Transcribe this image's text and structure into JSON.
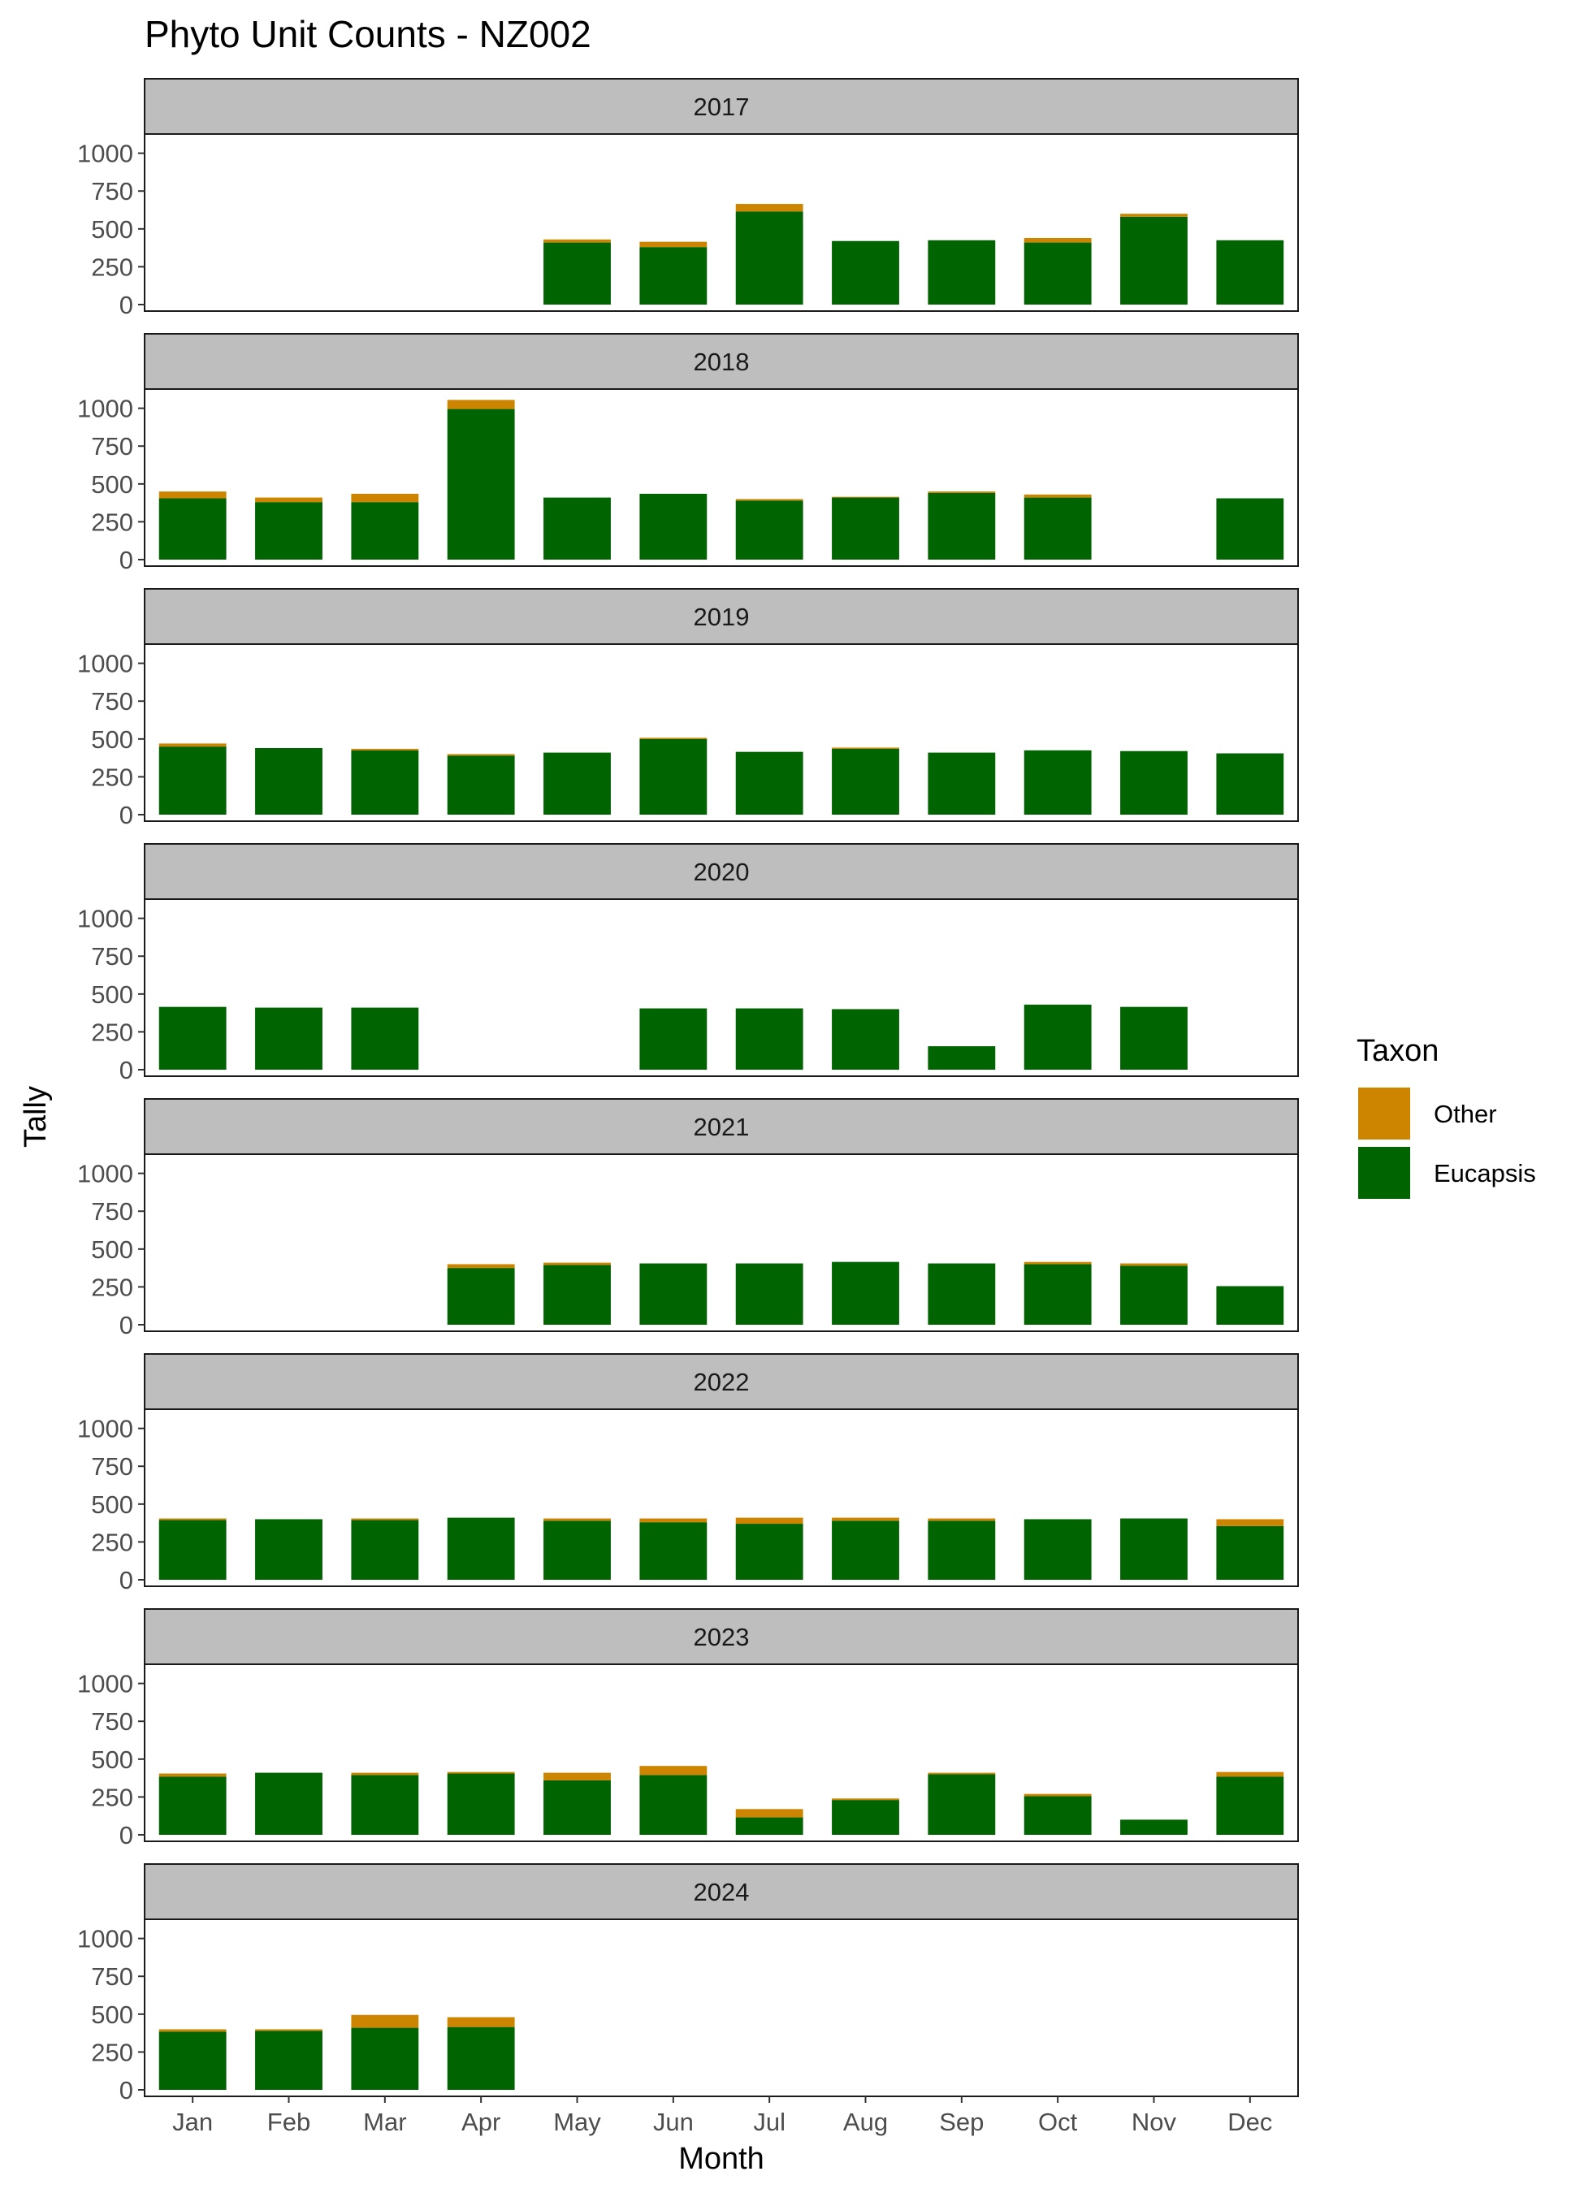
{
  "chart_data": {
    "type": "bar",
    "stacked": true,
    "faceted_by": "year",
    "title": "Phyto Unit Counts - NZ002",
    "xlabel": "Month",
    "ylabel": "Tally",
    "ylim": [
      0,
      1100
    ],
    "yticks": [
      0,
      250,
      500,
      750,
      1000
    ],
    "grid": false,
    "legend": {
      "title": "Taxon",
      "position": "right",
      "entries": [
        "Other",
        "Eucapsis"
      ]
    },
    "colors": {
      "Other": "#CD8500",
      "Eucapsis": "#006400",
      "strip": "#bebebe"
    },
    "categories": [
      "Jan",
      "Feb",
      "Mar",
      "Apr",
      "May",
      "Jun",
      "Jul",
      "Aug",
      "Sep",
      "Oct",
      "Nov",
      "Dec"
    ],
    "panels": [
      {
        "year": "2017",
        "series": [
          {
            "name": "Eucapsis",
            "values": [
              null,
              null,
              null,
              null,
              410,
              380,
              615,
              420,
              425,
              410,
              580,
              425
            ]
          },
          {
            "name": "Other",
            "values": [
              null,
              null,
              null,
              null,
              20,
              35,
              50,
              0,
              0,
              30,
              20,
              0
            ]
          }
        ]
      },
      {
        "year": "2018",
        "series": [
          {
            "name": "Eucapsis",
            "values": [
              405,
              380,
              380,
              995,
              410,
              435,
              390,
              410,
              440,
              410,
              null,
              405
            ]
          },
          {
            "name": "Other",
            "values": [
              45,
              30,
              55,
              60,
              0,
              0,
              10,
              5,
              10,
              20,
              null,
              0
            ]
          }
        ]
      },
      {
        "year": "2019",
        "series": [
          {
            "name": "Eucapsis",
            "values": [
              450,
              440,
              425,
              390,
              410,
              500,
              415,
              435,
              410,
              425,
              420,
              405
            ]
          },
          {
            "name": "Other",
            "values": [
              20,
              0,
              10,
              10,
              0,
              8,
              0,
              8,
              0,
              0,
              0,
              0
            ]
          }
        ]
      },
      {
        "year": "2020",
        "series": [
          {
            "name": "Eucapsis",
            "values": [
              415,
              410,
              410,
              null,
              null,
              405,
              405,
              400,
              155,
              430,
              415,
              null
            ]
          },
          {
            "name": "Other",
            "values": [
              0,
              0,
              0,
              null,
              null,
              0,
              0,
              0,
              0,
              0,
              0,
              null
            ]
          }
        ]
      },
      {
        "year": "2021",
        "series": [
          {
            "name": "Eucapsis",
            "values": [
              null,
              null,
              null,
              375,
              395,
              405,
              405,
              415,
              405,
              400,
              390,
              255
            ]
          },
          {
            "name": "Other",
            "values": [
              null,
              null,
              null,
              25,
              15,
              0,
              0,
              0,
              0,
              15,
              15,
              0
            ]
          }
        ]
      },
      {
        "year": "2022",
        "series": [
          {
            "name": "Eucapsis",
            "values": [
              395,
              400,
              395,
              410,
              390,
              380,
              370,
              390,
              390,
              400,
              405,
              355
            ]
          },
          {
            "name": "Other",
            "values": [
              10,
              0,
              10,
              0,
              15,
              25,
              40,
              20,
              15,
              0,
              0,
              45
            ]
          }
        ]
      },
      {
        "year": "2023",
        "series": [
          {
            "name": "Eucapsis",
            "values": [
              385,
              410,
              395,
              405,
              360,
              395,
              115,
              230,
              400,
              255,
              100,
              385
            ]
          },
          {
            "name": "Other",
            "values": [
              20,
              0,
              15,
              10,
              50,
              60,
              55,
              10,
              10,
              15,
              0,
              30
            ]
          }
        ]
      },
      {
        "year": "2024",
        "series": [
          {
            "name": "Eucapsis",
            "values": [
              385,
              390,
              410,
              415,
              null,
              null,
              null,
              null,
              null,
              null,
              null,
              null
            ]
          },
          {
            "name": "Other",
            "values": [
              15,
              10,
              85,
              65,
              null,
              null,
              null,
              null,
              null,
              null,
              null,
              null
            ]
          }
        ]
      }
    ]
  }
}
